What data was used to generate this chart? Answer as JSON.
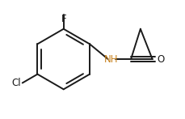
{
  "bg_color": "#ffffff",
  "line_color": "#1a1a1a",
  "line_width": 1.4,
  "cl_label": {
    "text": "Cl",
    "color": "#1a1a1a",
    "fontsize": 8.5
  },
  "f_label": {
    "text": "F",
    "color": "#1a1a1a",
    "fontsize": 8.5
  },
  "nh_label": {
    "text": "NH",
    "color": "#c8821e",
    "fontsize": 8.5
  },
  "o_label": {
    "text": "O",
    "color": "#1a1a1a",
    "fontsize": 8.5
  }
}
